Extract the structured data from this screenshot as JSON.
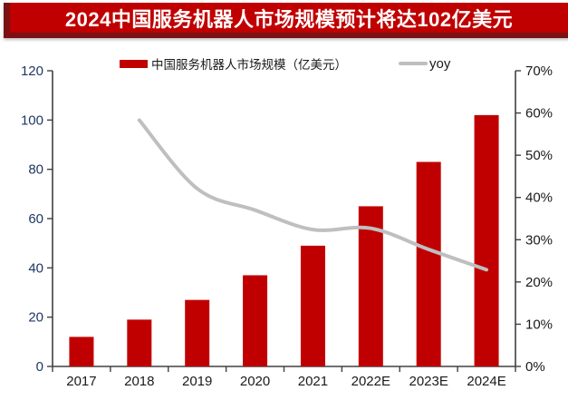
{
  "title": {
    "text": "2024中国服务机器人市场规模预计将达102亿美元"
  },
  "colors": {
    "bar": "#c00000",
    "line": "#bfbfbf",
    "banner_bg": "#c00000",
    "banner_edge": "#7c1114",
    "axis_line": "#404040",
    "left_tick_label": "#1f3864",
    "right_tick_label": "#1a1a1a",
    "x_tick_label": "#1a1a1a"
  },
  "legend": {
    "market_label": "中国服务机器人市场规模（亿美元）",
    "yoy_label": "yoy"
  },
  "chart_data": {
    "type": "bar+line combo",
    "categories": [
      "2017",
      "2018",
      "2019",
      "2020",
      "2021",
      "2022E",
      "2023E",
      "2024E"
    ],
    "series": [
      {
        "name": "中国服务机器人市场规模（亿美元）",
        "type": "bar",
        "axis": "left",
        "values": [
          12,
          19,
          27,
          37,
          49,
          65,
          83,
          102
        ]
      },
      {
        "name": "yoy",
        "type": "line",
        "axis": "right",
        "values_percent": [
          null,
          58.3,
          42.1,
          37.0,
          32.4,
          32.7,
          27.7,
          22.9
        ]
      }
    ],
    "left_axis": {
      "min": 0,
      "max": 120,
      "step": 20,
      "ticks": [
        "0",
        "20",
        "40",
        "60",
        "80",
        "100",
        "120"
      ]
    },
    "right_axis": {
      "min": 0,
      "max": 70,
      "step": 10,
      "ticks": [
        "0%",
        "10%",
        "20%",
        "30%",
        "40%",
        "50%",
        "60%",
        "70%"
      ]
    },
    "grid": false,
    "legend_position": "top"
  }
}
